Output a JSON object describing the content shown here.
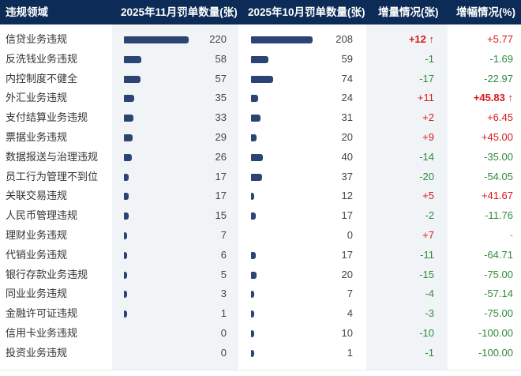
{
  "header": {
    "col_area": "违规领域",
    "col_nov": "2025年11月罚单数量(张)",
    "col_oct": "2025年10月罚单数量(张)",
    "col_delta": "增量情况(张)",
    "col_pct": "增幅情况(%)"
  },
  "colors": {
    "header_bg": "#0c2c57",
    "bar": "#2c4475",
    "increase": "#d7191c",
    "decrease": "#2e8b3c",
    "shaded_column": "#f1f4f6"
  },
  "rows": [
    {
      "area": "信贷业务违规",
      "nov": "220",
      "oct": "208",
      "delta": "+12 ↑",
      "pct": "+5.77",
      "nov_v": 220,
      "oct_v": 208,
      "delta_dir": "pos",
      "pct_dir": "pos",
      "delta_bold": true,
      "pct_bold": false
    },
    {
      "area": "反洗钱业务违规",
      "nov": "58",
      "oct": "59",
      "delta": "-1",
      "pct": "-1.69",
      "nov_v": 58,
      "oct_v": 59,
      "delta_dir": "neg",
      "pct_dir": "neg"
    },
    {
      "area": "内控制度不健全",
      "nov": "57",
      "oct": "74",
      "delta": "-17",
      "pct": "-22.97",
      "nov_v": 57,
      "oct_v": 74,
      "delta_dir": "neg",
      "pct_dir": "neg"
    },
    {
      "area": "外汇业务违规",
      "nov": "35",
      "oct": "24",
      "delta": "+11",
      "pct": "+45.83 ↑",
      "nov_v": 35,
      "oct_v": 24,
      "delta_dir": "pos",
      "pct_dir": "pos",
      "pct_bold": true
    },
    {
      "area": "支付结算业务违规",
      "nov": "33",
      "oct": "31",
      "delta": "+2",
      "pct": "+6.45",
      "nov_v": 33,
      "oct_v": 31,
      "delta_dir": "pos",
      "pct_dir": "pos"
    },
    {
      "area": "票据业务违规",
      "nov": "29",
      "oct": "20",
      "delta": "+9",
      "pct": "+45.00",
      "nov_v": 29,
      "oct_v": 20,
      "delta_dir": "pos",
      "pct_dir": "pos"
    },
    {
      "area": "数据报送与治理违规",
      "nov": "26",
      "oct": "40",
      "delta": "-14",
      "pct": "-35.00",
      "nov_v": 26,
      "oct_v": 40,
      "delta_dir": "neg",
      "pct_dir": "neg"
    },
    {
      "area": "员工行为管理不到位",
      "nov": "17",
      "oct": "37",
      "delta": "-20",
      "pct": "-54.05",
      "nov_v": 17,
      "oct_v": 37,
      "delta_dir": "neg",
      "pct_dir": "neg"
    },
    {
      "area": "关联交易违规",
      "nov": "17",
      "oct": "12",
      "delta": "+5",
      "pct": "+41.67",
      "nov_v": 17,
      "oct_v": 12,
      "delta_dir": "pos",
      "pct_dir": "pos"
    },
    {
      "area": "人民币管理违规",
      "nov": "15",
      "oct": "17",
      "delta": "-2",
      "pct": "-11.76",
      "nov_v": 15,
      "oct_v": 17,
      "delta_dir": "neg",
      "pct_dir": "neg"
    },
    {
      "area": "理财业务违规",
      "nov": "7",
      "oct": "0",
      "delta": "+7",
      "pct": "-",
      "nov_v": 7,
      "oct_v": 0,
      "delta_dir": "pos",
      "pct_dir": "neu"
    },
    {
      "area": "代销业务违规",
      "nov": "6",
      "oct": "17",
      "delta": "-11",
      "pct": "-64.71",
      "nov_v": 6,
      "oct_v": 17,
      "delta_dir": "neg",
      "pct_dir": "neg"
    },
    {
      "area": "银行存款业务违规",
      "nov": "5",
      "oct": "20",
      "delta": "-15",
      "pct": "-75.00",
      "nov_v": 5,
      "oct_v": 20,
      "delta_dir": "neg",
      "pct_dir": "neg"
    },
    {
      "area": "同业业务违规",
      "nov": "3",
      "oct": "7",
      "delta": "-4",
      "pct": "-57.14",
      "nov_v": 3,
      "oct_v": 7,
      "delta_dir": "neg",
      "pct_dir": "neg"
    },
    {
      "area": "金融许可证违规",
      "nov": "1",
      "oct": "4",
      "delta": "-3",
      "pct": "-75.00",
      "nov_v": 1,
      "oct_v": 4,
      "delta_dir": "neg",
      "pct_dir": "neg"
    },
    {
      "area": "信用卡业务违规",
      "nov": "0",
      "oct": "10",
      "delta": "-10",
      "pct": "-100.00",
      "nov_v": 0,
      "oct_v": 10,
      "delta_dir": "neg",
      "pct_dir": "neg"
    },
    {
      "area": "投资业务违规",
      "nov": "0",
      "oct": "1",
      "delta": "-1",
      "pct": "-100.00",
      "nov_v": 0,
      "oct_v": 1,
      "delta_dir": "neg",
      "pct_dir": "neg"
    }
  ]
}
